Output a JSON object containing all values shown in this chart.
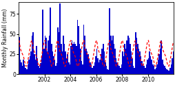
{
  "title": "",
  "ylabel": "Monthly Rainfall (mm)",
  "xlabel": "",
  "bar_color": "#0000cc",
  "line_color": "#ff0000",
  "background_color": "#ffffff",
  "plot_bg_color": "#ffffff",
  "ylim": [
    0,
    90
  ],
  "xlim_start": 2000.0,
  "xlim_end": 2012.0,
  "xticks": [
    2002,
    2004,
    2006,
    2008,
    2010
  ],
  "yticks": [
    0,
    25,
    50,
    75
  ],
  "bar_width": 0.0833,
  "monthly_rainfall": [
    46,
    18,
    15,
    10,
    18,
    12,
    8,
    6,
    12,
    18,
    22,
    28,
    48,
    52,
    25,
    18,
    35,
    20,
    10,
    8,
    14,
    22,
    80,
    32,
    48,
    45,
    28,
    42,
    48,
    83,
    38,
    28,
    22,
    18,
    10,
    14,
    58,
    52,
    88,
    38,
    28,
    48,
    38,
    28,
    20,
    25,
    15,
    12,
    35,
    42,
    38,
    40,
    38,
    35,
    68,
    60,
    38,
    32,
    16,
    12,
    62,
    48,
    32,
    28,
    25,
    20,
    15,
    12,
    8,
    10,
    15,
    22,
    32,
    20,
    15,
    18,
    25,
    32,
    38,
    28,
    15,
    10,
    6,
    5,
    82,
    48,
    42,
    48,
    38,
    32,
    20,
    15,
    12,
    10,
    8,
    12,
    28,
    22,
    38,
    32,
    42,
    48,
    45,
    38,
    28,
    20,
    10,
    8,
    52,
    45,
    38,
    32,
    28,
    22,
    16,
    12,
    10,
    8,
    12,
    18,
    20,
    28,
    22,
    18,
    12,
    10,
    6,
    8,
    12,
    18,
    25,
    32,
    42,
    18,
    12,
    10,
    8,
    6,
    5,
    4,
    8,
    12,
    20,
    28
  ],
  "long_term_avg": [
    42,
    32,
    28,
    25,
    22,
    16,
    10,
    10,
    16,
    24,
    32,
    40,
    42,
    32,
    28,
    25,
    22,
    16,
    10,
    10,
    16,
    24,
    32,
    40,
    42,
    32,
    28,
    25,
    22,
    16,
    10,
    10,
    16,
    24,
    32,
    40,
    42,
    32,
    28,
    25,
    22,
    16,
    10,
    10,
    16,
    24,
    32,
    40,
    42,
    32,
    28,
    25,
    22,
    16,
    10,
    10,
    16,
    24,
    32,
    40,
    42,
    32,
    28,
    25,
    22,
    16,
    10,
    10,
    16,
    24,
    32,
    40,
    42,
    32,
    28,
    25,
    22,
    16,
    10,
    10,
    16,
    24,
    32,
    40,
    42,
    32,
    28,
    25,
    22,
    16,
    10,
    10,
    16,
    24,
    32,
    40,
    42,
    32,
    28,
    25,
    22,
    16,
    10,
    10,
    16,
    24,
    32,
    40,
    42,
    32,
    28,
    25,
    22,
    16,
    10,
    10,
    16,
    24,
    32,
    40,
    42,
    32,
    28,
    25,
    22,
    16,
    10,
    10,
    16,
    24,
    32,
    40,
    42,
    32,
    28,
    25,
    22,
    16,
    10,
    10,
    16,
    24,
    32,
    40
  ],
  "figsize": [
    2.55,
    1.24
  ],
  "dpi": 100,
  "ylabel_fontsize": 5.5,
  "tick_fontsize": 5.5,
  "line_width": 0.9,
  "line_dash": [
    3,
    2
  ]
}
